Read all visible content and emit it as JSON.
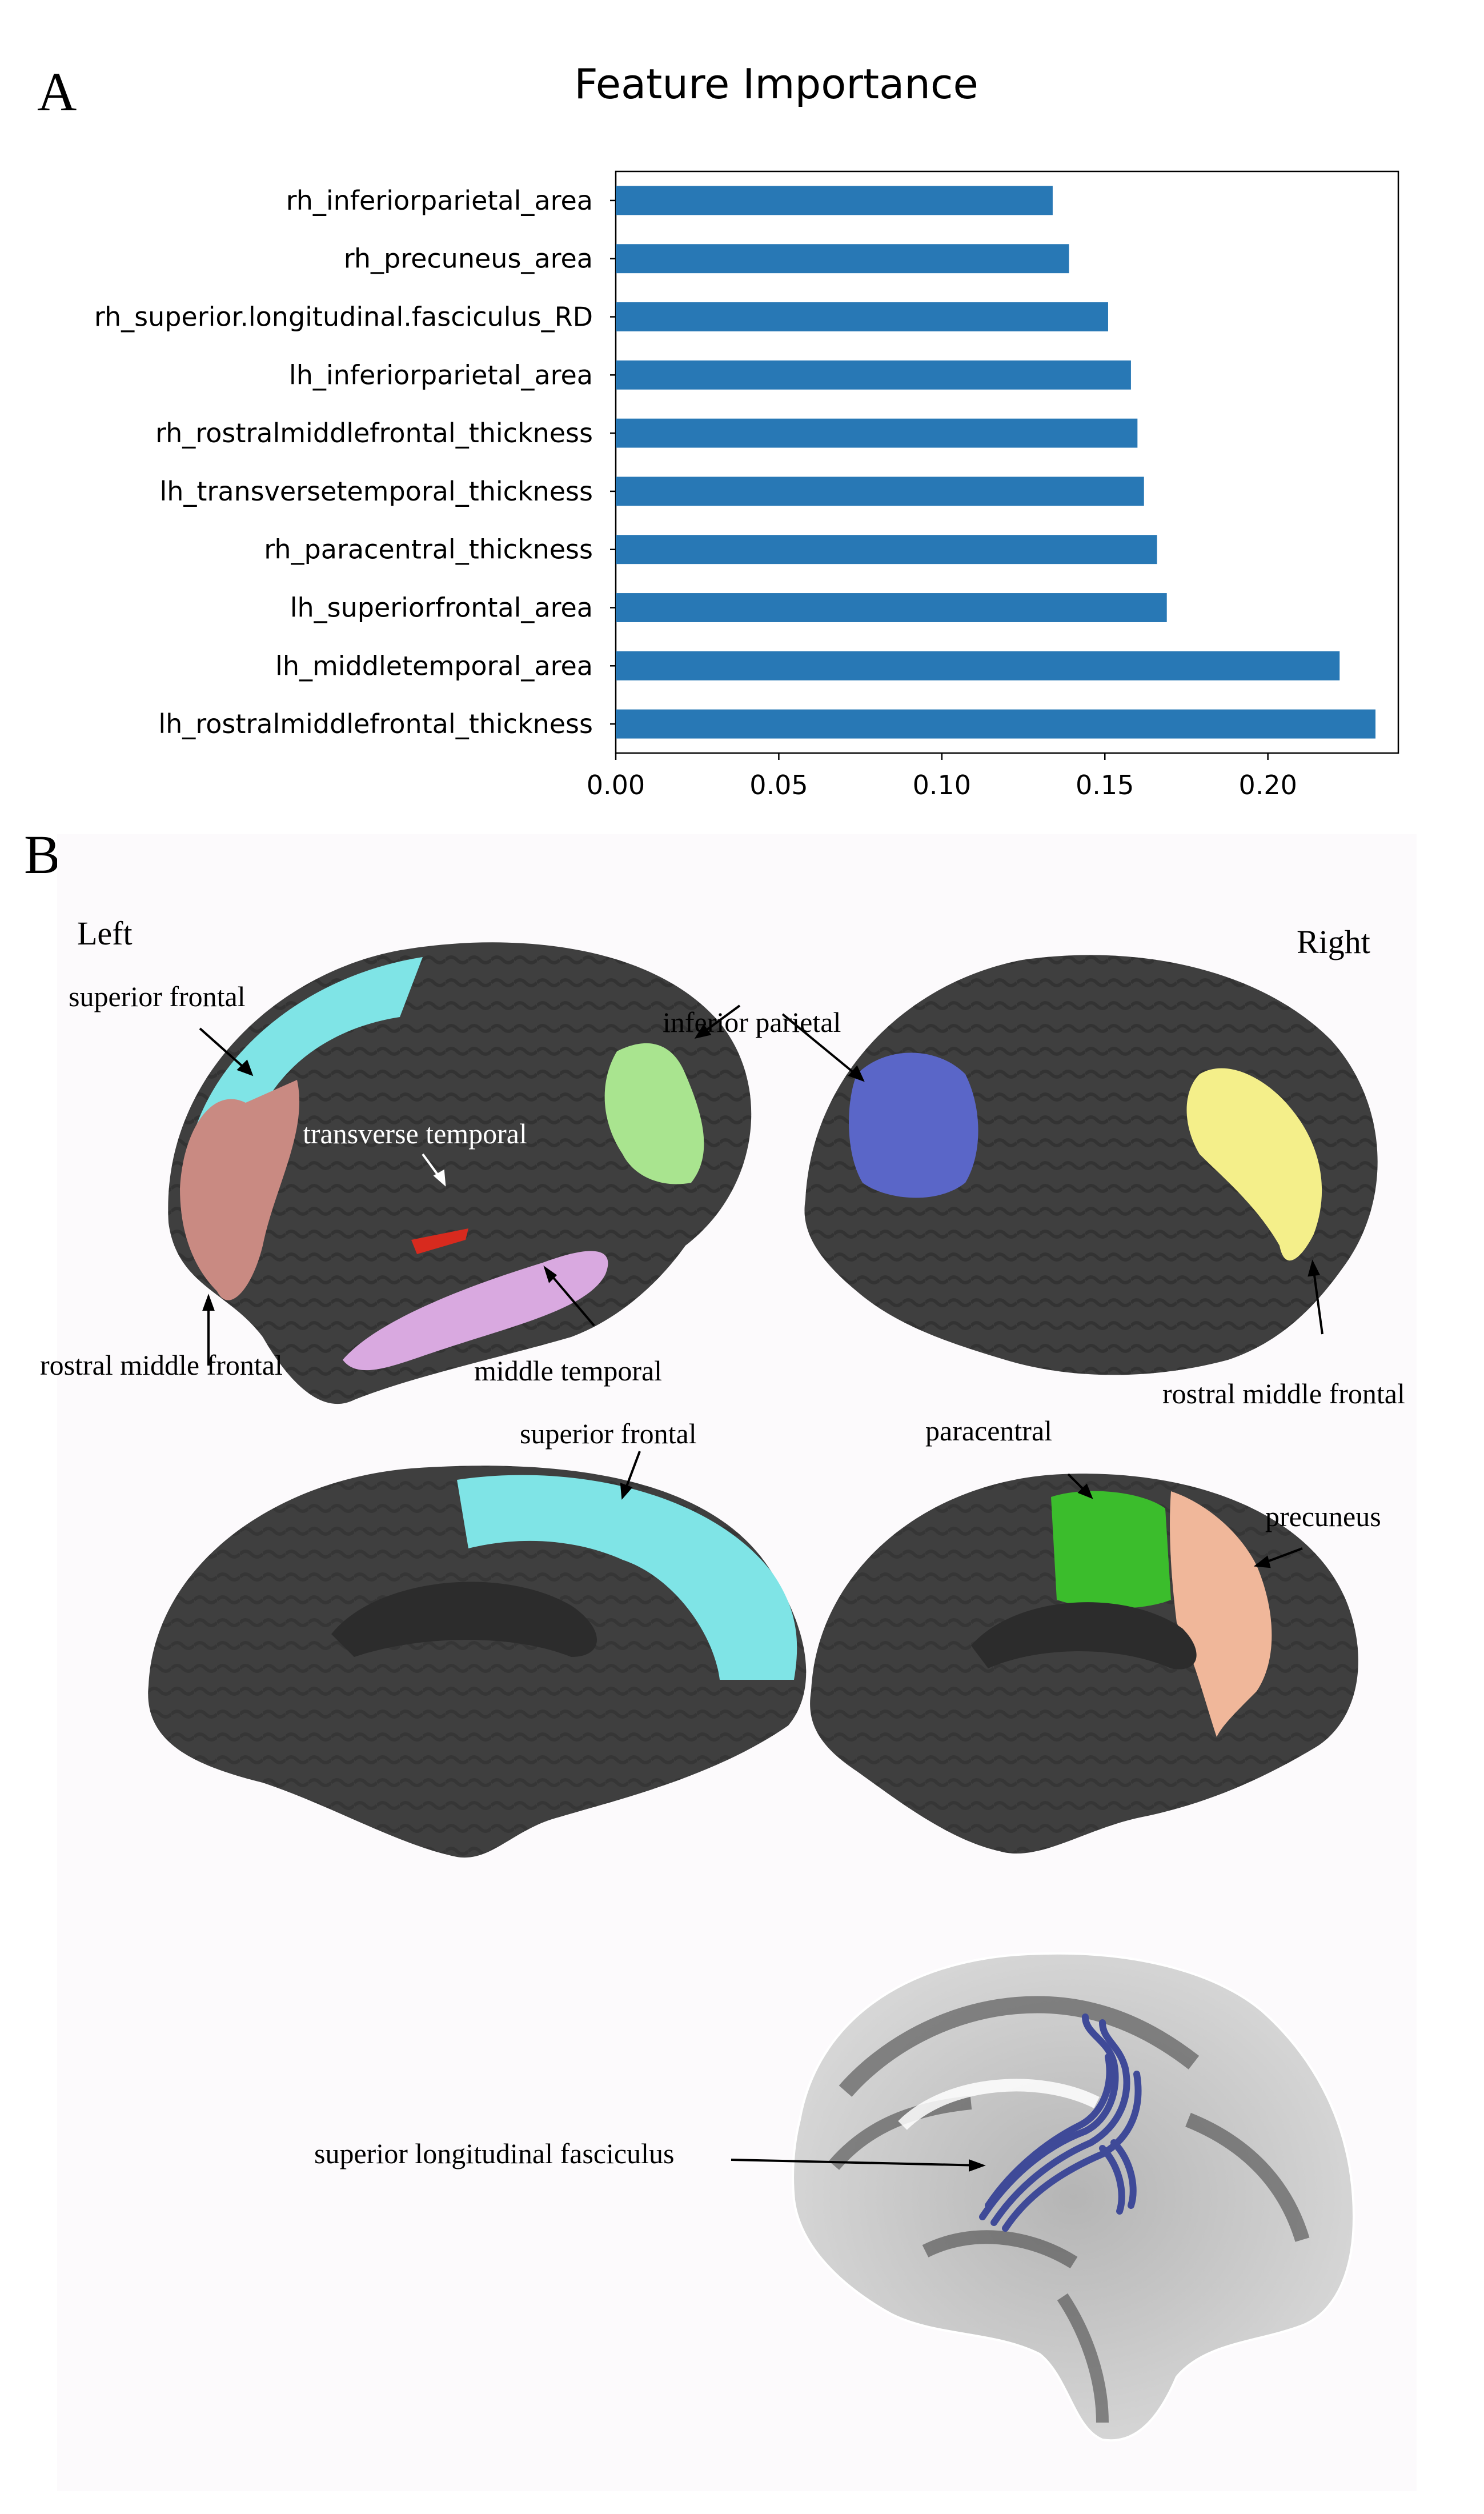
{
  "panel_a": {
    "letter": "A"
  },
  "panel_b": {
    "letter": "B",
    "headings": {
      "left": "Left",
      "right": "Right"
    },
    "labels": {
      "superior_frontal_lateral": "superior frontal",
      "transverse_temporal": "transverse temporal",
      "inferior_parietal": "inferior parietal",
      "rostral_middle_frontal_left": "rostral middle frontal",
      "middle_temporal": "middle temporal",
      "rostral_middle_frontal_right": "rostral middle frontal",
      "superior_frontal_medial": "superior frontal",
      "paracentral": "paracentral",
      "precuneus": "precuneus",
      "slf": "superior longitudinal fasciculus"
    },
    "region_colors": {
      "cortex": "#3f3f3f",
      "superior_frontal": "#7fe4e6",
      "rostral_middle_frontal_left": "#c98a82",
      "transverse_temporal": "#d82a1e",
      "inferior_parietal": "#a9e48f",
      "middle_temporal": "#d9a9e0",
      "inferior_parietal_right": "#5a66c8",
      "rostral_middle_frontal_right": "#f4ef8a",
      "paracentral": "#3bbd2c",
      "precuneus": "#f0b79a",
      "slf": "#3f4a98"
    }
  },
  "chart_data": {
    "type": "bar",
    "orientation": "horizontal",
    "title": "Feature Importance",
    "xlabel": "",
    "ylabel": "",
    "xlim": [
      0,
      0.24
    ],
    "xticks": [
      "0.00",
      "0.05",
      "0.10",
      "0.15",
      "0.20"
    ],
    "grid": false,
    "bar_color": "#2878b5",
    "categories": [
      "rh_inferiorparietal_area",
      "rh_precuneus_area",
      "rh_superior.longitudinal.fasciculus_RD",
      "lh_inferiorparietal_area",
      "rh_rostralmiddlefrontal_thickness",
      "lh_transversetemporal_thickness",
      "rh_paracentral_thickness",
      "lh_superiorfrontal_area",
      "lh_middletemporal_area",
      "lh_rostralmiddlefrontal_thickness"
    ],
    "values": [
      0.134,
      0.139,
      0.151,
      0.158,
      0.16,
      0.162,
      0.166,
      0.169,
      0.222,
      0.233
    ]
  }
}
